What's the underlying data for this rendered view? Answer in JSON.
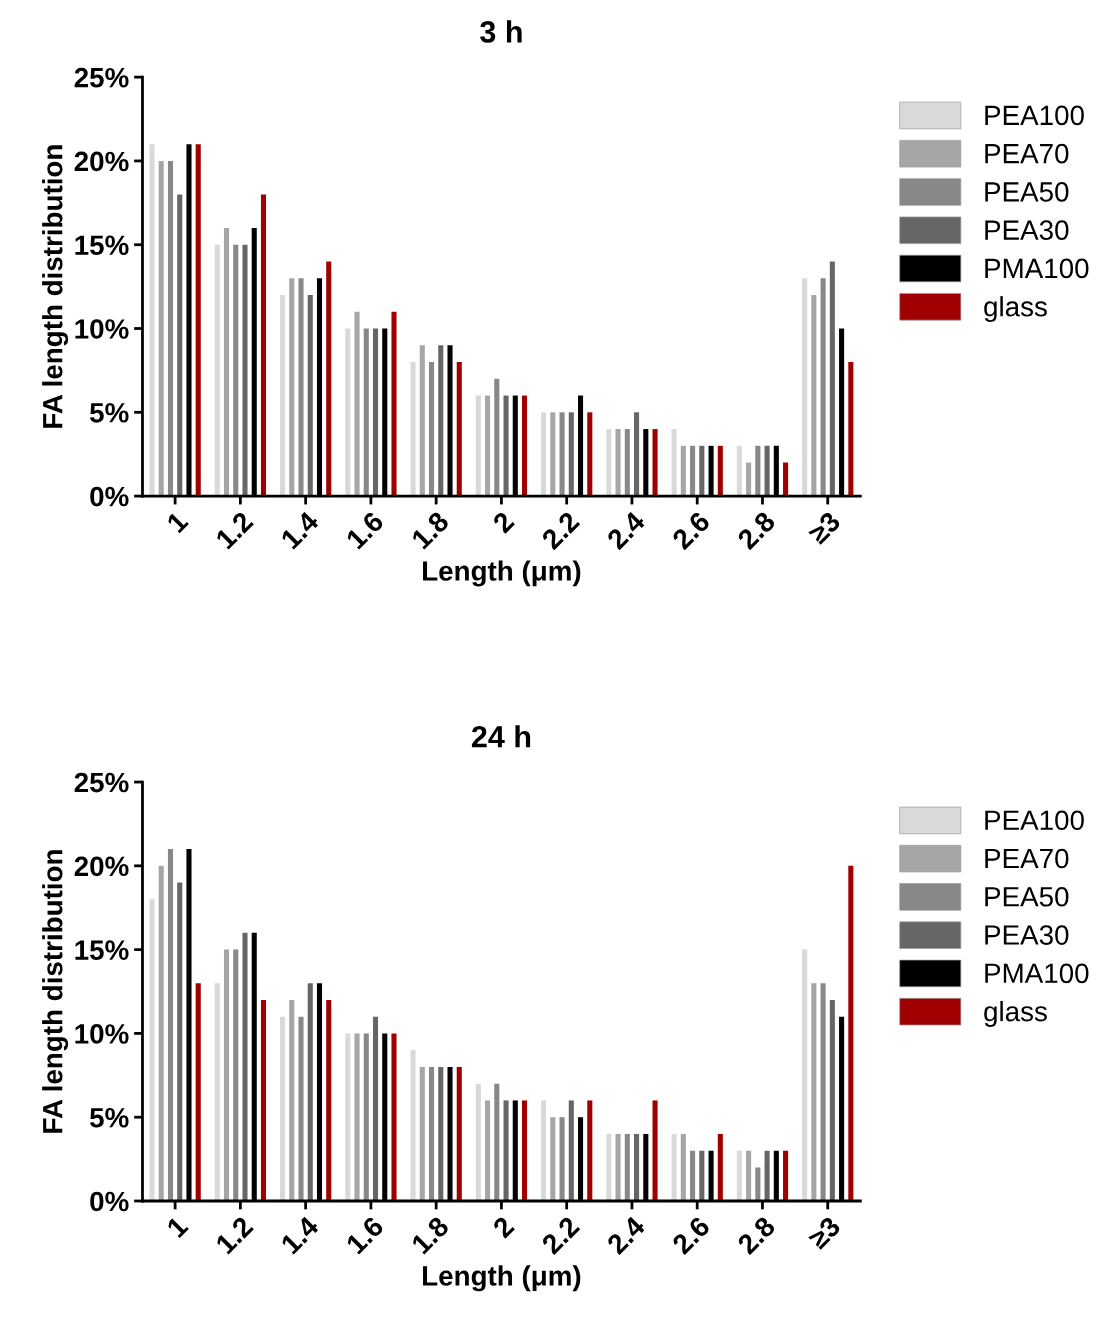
{
  "chart_data": [
    {
      "type": "bar",
      "title": "3 h",
      "xlabel": "Length (μm)",
      "ylabel": "FA length distribution",
      "categories": [
        "1",
        "1.2",
        "1.4",
        "1.6",
        "1.8",
        "2",
        "2.2",
        "2.4",
        "2.6",
        "2.8",
        "≥3"
      ],
      "series": [
        {
          "name": "PEA100",
          "color": "#d9d9d9",
          "values": [
            21,
            15,
            12,
            10,
            8,
            6,
            5,
            4,
            4,
            3,
            13
          ]
        },
        {
          "name": "PEA70",
          "color": "#a6a6a6",
          "values": [
            20,
            16,
            13,
            11,
            9,
            6,
            5,
            4,
            3,
            2,
            12
          ]
        },
        {
          "name": "PEA50",
          "color": "#888888",
          "values": [
            20,
            15,
            13,
            10,
            8,
            7,
            5,
            4,
            3,
            3,
            13
          ]
        },
        {
          "name": "PEA30",
          "color": "#666666",
          "values": [
            18,
            15,
            12,
            10,
            9,
            6,
            5,
            5,
            3,
            3,
            14
          ]
        },
        {
          "name": "PMA100",
          "color": "#000000",
          "values": [
            21,
            16,
            13,
            10,
            9,
            6,
            6,
            4,
            3,
            3,
            10
          ]
        },
        {
          "name": "glass",
          "color": "#a00000",
          "values": [
            21,
            18,
            14,
            11,
            8,
            6,
            5,
            4,
            3,
            2,
            8
          ]
        }
      ],
      "ylim": [
        0,
        25
      ],
      "yticks": [
        {
          "value": 0,
          "label": "0%"
        },
        {
          "value": 5,
          "label": "5%"
        },
        {
          "value": 10,
          "label": "10%"
        },
        {
          "value": 15,
          "label": "15%"
        },
        {
          "value": 20,
          "label": "20%"
        },
        {
          "value": 25,
          "label": "25%"
        }
      ],
      "legend": "top right",
      "grid": false
    },
    {
      "type": "bar",
      "title": "24 h",
      "xlabel": "Length (μm)",
      "ylabel": "FA length distribution",
      "categories": [
        "1",
        "1.2",
        "1.4",
        "1.6",
        "1.8",
        "2",
        "2.2",
        "2.4",
        "2.6",
        "2.8",
        "≥3"
      ],
      "series": [
        {
          "name": "PEA100",
          "color": "#d9d9d9",
          "values": [
            18,
            13,
            11,
            10,
            9,
            7,
            6,
            4,
            4,
            3,
            15
          ]
        },
        {
          "name": "PEA70",
          "color": "#a6a6a6",
          "values": [
            20,
            15,
            12,
            10,
            8,
            6,
            5,
            4,
            4,
            3,
            13
          ]
        },
        {
          "name": "PEA50",
          "color": "#888888",
          "values": [
            21,
            15,
            11,
            10,
            8,
            7,
            5,
            4,
            3,
            2,
            13
          ]
        },
        {
          "name": "PEA30",
          "color": "#666666",
          "values": [
            19,
            16,
            13,
            11,
            8,
            6,
            6,
            4,
            3,
            3,
            12
          ]
        },
        {
          "name": "PMA100",
          "color": "#000000",
          "values": [
            21,
            16,
            13,
            10,
            8,
            6,
            5,
            4,
            3,
            3,
            11
          ]
        },
        {
          "name": "glass",
          "color": "#a00000",
          "values": [
            13,
            12,
            12,
            10,
            8,
            6,
            6,
            6,
            4,
            3,
            20
          ]
        }
      ],
      "ylim": [
        0,
        25
      ],
      "yticks": [
        {
          "value": 0,
          "label": "0%"
        },
        {
          "value": 5,
          "label": "5%"
        },
        {
          "value": 10,
          "label": "10%"
        },
        {
          "value": 15,
          "label": "15%"
        },
        {
          "value": 20,
          "label": "20%"
        },
        {
          "value": 25,
          "label": "25%"
        }
      ],
      "legend": "top right",
      "grid": false
    }
  ]
}
